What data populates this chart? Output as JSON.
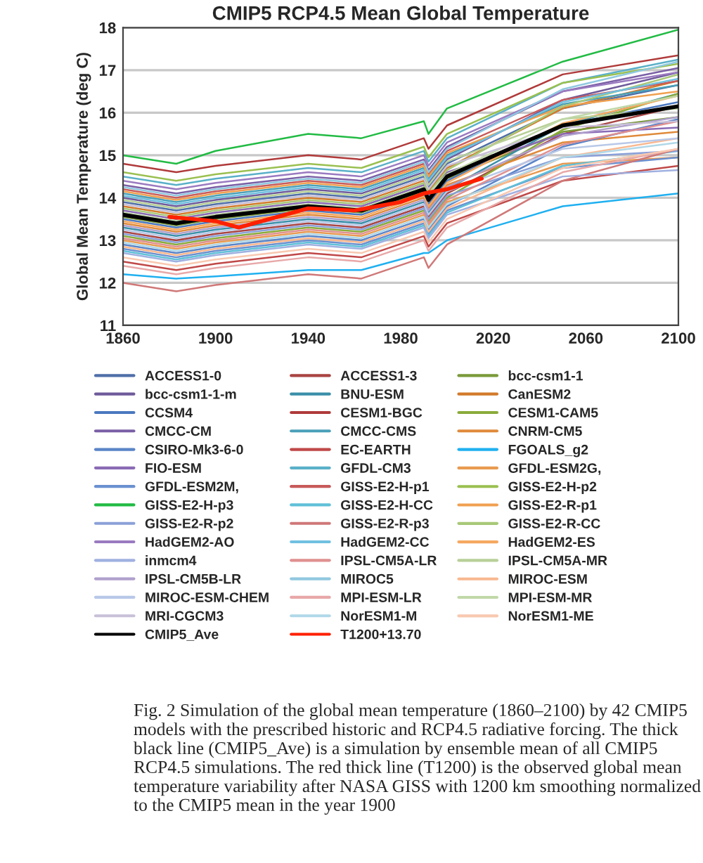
{
  "chart_data": {
    "type": "line",
    "title": "CMIP5 RCP4.5 Mean Global Temperature",
    "ylabel": "Global Mean Temperature (deg C)",
    "x": [
      1860,
      1883,
      1900,
      1940,
      1963,
      1990,
      1992,
      2000,
      2050,
      2100
    ],
    "xlim": [
      1860,
      2100
    ],
    "xticks": [
      1860,
      1900,
      1940,
      1980,
      2020,
      2060,
      2100
    ],
    "ylim": [
      11,
      18
    ],
    "yticks": [
      11,
      12,
      13,
      14,
      15,
      16,
      17,
      18
    ],
    "grid": "y",
    "legend": "bottom",
    "marker": "none",
    "line_style": "solid",
    "series": [
      {
        "name": "ACCESS1-0",
        "color": "#4f6fa8",
        "values": [
          13.9,
          13.7,
          13.85,
          14.1,
          14.0,
          14.5,
          14.25,
          14.8,
          16.1,
          16.65
        ]
      },
      {
        "name": "ACCESS1-3",
        "color": "#a94442",
        "values": [
          13.2,
          13.0,
          13.15,
          13.4,
          13.3,
          13.8,
          13.55,
          14.1,
          15.5,
          16.15
        ]
      },
      {
        "name": "bcc-csm1-1",
        "color": "#7a9a3a",
        "values": [
          13.55,
          13.35,
          13.5,
          13.75,
          13.65,
          14.15,
          13.9,
          14.45,
          15.55,
          15.9
        ]
      },
      {
        "name": "bcc-csm1-1-m",
        "color": "#6f5a9a",
        "values": [
          14.0,
          13.8,
          13.95,
          14.2,
          14.1,
          14.6,
          14.35,
          14.9,
          16.3,
          16.95
        ]
      },
      {
        "name": "BNU-ESM",
        "color": "#3a8fa8",
        "values": [
          13.3,
          13.1,
          13.25,
          13.5,
          13.4,
          13.9,
          13.65,
          14.2,
          15.7,
          16.45
        ]
      },
      {
        "name": "CanESM2",
        "color": "#d27a2a",
        "values": [
          13.8,
          13.6,
          13.75,
          14.0,
          13.9,
          14.4,
          14.15,
          14.7,
          16.1,
          16.75
        ]
      },
      {
        "name": "CCSM4",
        "color": "#4a78c0",
        "values": [
          13.5,
          13.3,
          13.45,
          13.7,
          13.6,
          14.1,
          13.85,
          14.4,
          15.7,
          16.25
        ]
      },
      {
        "name": "CESM1-BGC",
        "color": "#b03a3a",
        "values": [
          14.8,
          14.6,
          14.75,
          15.0,
          14.9,
          15.4,
          15.15,
          15.7,
          16.9,
          17.35
        ]
      },
      {
        "name": "CESM1-CAM5",
        "color": "#8aab3a",
        "values": [
          13.1,
          12.9,
          13.05,
          13.3,
          13.2,
          13.7,
          13.45,
          14.0,
          15.6,
          16.45
        ]
      },
      {
        "name": "CMCC-CM",
        "color": "#7a5fa5",
        "values": [
          14.3,
          14.1,
          14.25,
          14.5,
          14.4,
          14.9,
          14.65,
          15.2,
          16.5,
          17.05
        ]
      },
      {
        "name": "CMCC-CMS",
        "color": "#4aa0b8",
        "values": [
          14.1,
          13.9,
          14.05,
          14.3,
          14.2,
          14.7,
          14.45,
          15.0,
          16.2,
          16.65
        ]
      },
      {
        "name": "CNRM-CM5",
        "color": "#e08a3a",
        "values": [
          13.4,
          13.2,
          13.35,
          13.6,
          13.5,
          14.0,
          13.75,
          14.3,
          15.3,
          15.55
        ]
      },
      {
        "name": "CSIRO-Mk3-6-0",
        "color": "#5a84c8",
        "values": [
          12.9,
          12.7,
          12.85,
          13.1,
          13.0,
          13.5,
          13.25,
          13.8,
          15.2,
          15.85
        ]
      },
      {
        "name": "EC-EARTH",
        "color": "#c04848",
        "values": [
          12.5,
          12.3,
          12.45,
          12.7,
          12.6,
          13.1,
          12.85,
          13.4,
          14.4,
          14.75
        ]
      },
      {
        "name": "FGOALS_g2",
        "color": "#1fb0f0",
        "values": [
          12.2,
          12.1,
          12.15,
          12.3,
          12.3,
          12.7,
          12.7,
          13.0,
          13.8,
          14.1
        ]
      },
      {
        "name": "FIO-ESM",
        "color": "#8a6ab5",
        "values": [
          13.7,
          13.5,
          13.65,
          13.9,
          13.8,
          14.3,
          14.05,
          14.6,
          15.5,
          15.65
        ]
      },
      {
        "name": "GFDL-CM3",
        "color": "#5ab0c8",
        "values": [
          14.5,
          14.3,
          14.45,
          14.7,
          14.6,
          15.1,
          14.85,
          15.4,
          16.7,
          17.25
        ]
      },
      {
        "name": "GFDL-ESM2G,",
        "color": "#e89a50",
        "values": [
          13.0,
          12.8,
          12.95,
          13.2,
          13.1,
          13.6,
          13.35,
          13.9,
          14.8,
          14.95
        ]
      },
      {
        "name": "GFDL-ESM2M,",
        "color": "#6a90d0",
        "values": [
          12.8,
          12.6,
          12.75,
          13.0,
          12.9,
          13.4,
          13.15,
          13.7,
          14.7,
          14.95
        ]
      },
      {
        "name": "GISS-E2-H-p1",
        "color": "#c85a5a",
        "values": [
          14.2,
          14.0,
          14.15,
          14.4,
          14.3,
          14.8,
          14.55,
          15.1,
          16.3,
          16.75
        ]
      },
      {
        "name": "GISS-E2-H-p2",
        "color": "#9ac050",
        "values": [
          14.6,
          14.4,
          14.55,
          14.8,
          14.7,
          15.2,
          14.95,
          15.5,
          16.7,
          17.15
        ]
      },
      {
        "name": "GISS-E2-H-p3",
        "color": "#22bb44",
        "values": [
          15.0,
          14.8,
          15.1,
          15.5,
          15.4,
          15.8,
          15.5,
          16.1,
          17.2,
          17.95
        ]
      },
      {
        "name": "GISS-E2-H-CC",
        "color": "#60c0d8",
        "values": [
          12.75,
          12.55,
          12.7,
          12.95,
          12.85,
          13.35,
          13.1,
          13.65,
          14.75,
          15.1
        ]
      },
      {
        "name": "GISS-E2-R-p1",
        "color": "#f0a050",
        "values": [
          14.15,
          13.95,
          14.1,
          14.35,
          14.25,
          14.75,
          14.5,
          15.05,
          16.15,
          16.5
        ]
      },
      {
        "name": "GISS-E2-R-p2",
        "color": "#8aa0d8",
        "values": [
          13.15,
          12.95,
          13.1,
          13.35,
          13.25,
          13.75,
          13.5,
          14.05,
          14.95,
          15.1
        ]
      },
      {
        "name": "GISS-E2-R-p3",
        "color": "#d07878",
        "values": [
          12.0,
          11.8,
          11.95,
          12.2,
          12.1,
          12.6,
          12.35,
          12.9,
          14.4,
          15.15
        ]
      },
      {
        "name": "GISS-E2-R-CC",
        "color": "#a8c878",
        "values": [
          13.75,
          13.55,
          13.7,
          13.95,
          13.85,
          14.35,
          14.1,
          14.65,
          16.15,
          16.9
        ]
      },
      {
        "name": "HadGEM2-AO",
        "color": "#9a7ac0",
        "values": [
          14.4,
          14.2,
          14.35,
          14.6,
          14.5,
          15.0,
          14.75,
          15.3,
          16.5,
          16.95
        ]
      },
      {
        "name": "HadGEM2-CC",
        "color": "#70c0e0",
        "values": [
          14.05,
          13.85,
          14.0,
          14.25,
          14.15,
          14.65,
          14.4,
          14.95,
          16.25,
          16.8
        ]
      },
      {
        "name": "HadGEM2-ES",
        "color": "#f5a860",
        "values": [
          13.45,
          13.25,
          13.4,
          13.65,
          13.55,
          14.05,
          13.8,
          14.35,
          15.75,
          16.4
        ]
      },
      {
        "name": "inmcm4",
        "color": "#a0b0e0",
        "values": [
          12.7,
          12.5,
          12.65,
          12.9,
          12.8,
          13.3,
          13.05,
          13.6,
          14.5,
          14.65
        ]
      },
      {
        "name": "IPSL-CM5A-LR",
        "color": "#e09090",
        "values": [
          13.05,
          12.85,
          13.0,
          13.25,
          13.15,
          13.65,
          13.4,
          13.95,
          15.25,
          15.8
        ]
      },
      {
        "name": "IPSL-CM5A-MR",
        "color": "#b8d098",
        "values": [
          13.95,
          13.75,
          13.9,
          14.15,
          14.05,
          14.55,
          14.3,
          14.85,
          15.85,
          16.1
        ]
      },
      {
        "name": "IPSL-CM5B-LR",
        "color": "#b0a0cc",
        "values": [
          13.35,
          13.15,
          13.3,
          13.55,
          13.45,
          13.95,
          13.7,
          14.25,
          15.45,
          15.9
        ]
      },
      {
        "name": "MIROC5",
        "color": "#90c8e0",
        "values": [
          14.25,
          14.05,
          14.2,
          14.45,
          14.35,
          14.85,
          14.6,
          15.15,
          16.55,
          17.2
        ]
      },
      {
        "name": "MIROC-ESM",
        "color": "#f8b890",
        "values": [
          12.85,
          12.65,
          12.8,
          13.05,
          12.95,
          13.45,
          13.2,
          13.75,
          14.95,
          15.4
        ]
      },
      {
        "name": "MIROC-ESM-CHEM",
        "color": "#b8c8e8",
        "values": [
          13.25,
          13.05,
          13.2,
          13.45,
          13.35,
          13.85,
          13.6,
          14.15,
          15.15,
          15.4
        ]
      },
      {
        "name": "MPI-ESM-LR",
        "color": "#e8a8a8",
        "values": [
          12.4,
          12.2,
          12.35,
          12.6,
          12.5,
          13.0,
          12.75,
          13.3,
          14.6,
          15.15
        ]
      },
      {
        "name": "MPI-ESM-MR",
        "color": "#c0d8a8",
        "values": [
          13.65,
          13.45,
          13.6,
          13.85,
          13.75,
          14.25,
          14.1,
          14.55,
          15.85,
          16.4
        ]
      },
      {
        "name": "MRI-CGCM3",
        "color": "#c8c0d8",
        "values": [
          13.85,
          13.65,
          13.8,
          14.05,
          13.95,
          14.45,
          14.2,
          14.75,
          15.65,
          15.8
        ]
      },
      {
        "name": "NorESM1-M",
        "color": "#b0d8e8",
        "values": [
          12.95,
          12.75,
          12.9,
          13.15,
          13.05,
          13.55,
          13.3,
          13.85,
          14.95,
          15.3
        ]
      },
      {
        "name": "NorESM1-ME",
        "color": "#f8c8b0",
        "values": [
          12.6,
          12.4,
          12.55,
          12.8,
          12.7,
          13.2,
          12.95,
          13.5,
          14.7,
          15.15
        ]
      },
      {
        "name": "CMIP5_Ave",
        "color": "#000000",
        "values": [
          13.6,
          13.4,
          13.55,
          13.8,
          13.7,
          14.2,
          13.95,
          14.5,
          15.7,
          16.15
        ]
      },
      {
        "name": "T1200+13.70",
        "color": "#ff2000",
        "x": [
          1880,
          1900,
          1910,
          1940,
          1960,
          1980,
          1990,
          2000,
          2015
        ],
        "values": [
          13.55,
          13.45,
          13.3,
          13.75,
          13.7,
          13.9,
          14.1,
          14.2,
          14.45
        ]
      }
    ],
    "annotations": [
      "Fig. 2 Simulation of the global mean temperature (1860–2100) by 42 CMIP5 models with the prescribed historic and RCP4.5 radiative forcing. The thick black line (CMIP5_Ave) is a simulation by ensemble mean of all CMIP5 RCP4.5 simulations. The red thick line (T1200) is the observed global mean temperature variability after NASA GISS with 1200 km smoothing normalized to the CMIP5 mean in the year 1900"
    ]
  }
}
